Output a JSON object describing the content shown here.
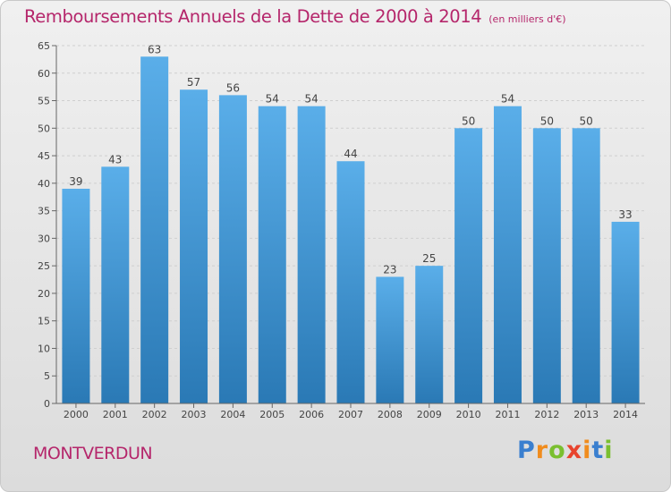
{
  "chart_data": {
    "type": "bar",
    "title": "Remboursements Annuels de la Dette de 2000 à 2014",
    "subtitle": "(en milliers d'€)",
    "xlabel": "",
    "ylabel": "",
    "categories": [
      "2000",
      "2001",
      "2002",
      "2003",
      "2004",
      "2005",
      "2006",
      "2007",
      "2008",
      "2009",
      "2010",
      "2011",
      "2012",
      "2013",
      "2014"
    ],
    "values": [
      39,
      43,
      63,
      57,
      56,
      54,
      54,
      44,
      23,
      25,
      50,
      54,
      50,
      50,
      33
    ],
    "ylim": [
      0,
      65
    ],
    "yticks": [
      "0",
      "5",
      "10",
      "15",
      "20",
      "25",
      "30",
      "35",
      "40",
      "45",
      "50",
      "55",
      "60",
      "65"
    ],
    "grid": true,
    "legend": "none"
  },
  "footer": {
    "commune": "MONTVERDUN",
    "logo_letters": [
      "P",
      "r",
      "o",
      "x",
      "i",
      "t",
      "i"
    ]
  },
  "colors": {
    "bar_top": "#5aaee9",
    "bar_bottom": "#2a79b5",
    "title": "#b5266b",
    "axis_text": "#444444",
    "logo": [
      "#3a7fcf",
      "#f08c1e",
      "#7abf2f",
      "#e8432d",
      "#f08c1e",
      "#3a7fcf",
      "#7abf2f"
    ]
  }
}
